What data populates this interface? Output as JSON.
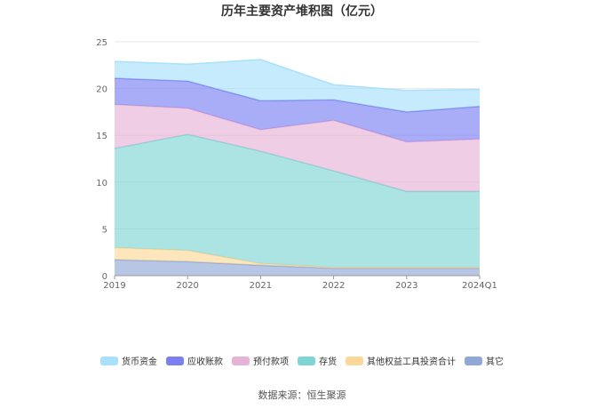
{
  "title": "历年主要资产堆积图（亿元）",
  "source": "数据来源：恒生聚源",
  "chart_data": {
    "type": "area",
    "stacked": true,
    "categories": [
      "2019",
      "2020",
      "2021",
      "2022",
      "2023",
      "2024Q1"
    ],
    "ylim": [
      0,
      25
    ],
    "yticks": [
      0,
      5,
      10,
      15,
      20,
      25
    ],
    "grid": true,
    "legend_position": "bottom",
    "series": [
      {
        "name": "其它",
        "values": [
          1.7,
          1.5,
          1.1,
          0.8,
          0.8,
          0.8
        ],
        "color": "#8fa8d6"
      },
      {
        "name": "其他权益工具投资合计",
        "values": [
          1.3,
          1.2,
          0.2,
          0.1,
          0.1,
          0.1
        ],
        "color": "#fcd898"
      },
      {
        "name": "存货",
        "values": [
          10.6,
          12.4,
          12.0,
          10.3,
          8.1,
          8.1
        ],
        "color": "#7fd5d5"
      },
      {
        "name": "预付款项",
        "values": [
          4.7,
          2.8,
          2.3,
          5.4,
          5.3,
          5.6
        ],
        "color": "#e7b2d7"
      },
      {
        "name": "应收账款",
        "values": [
          2.8,
          2.9,
          3.1,
          2.2,
          3.2,
          3.5
        ],
        "color": "#7b7ff1"
      },
      {
        "name": "货币资金",
        "values": [
          1.8,
          1.8,
          4.4,
          1.6,
          2.3,
          1.8
        ],
        "color": "#a8e1fb"
      }
    ]
  }
}
